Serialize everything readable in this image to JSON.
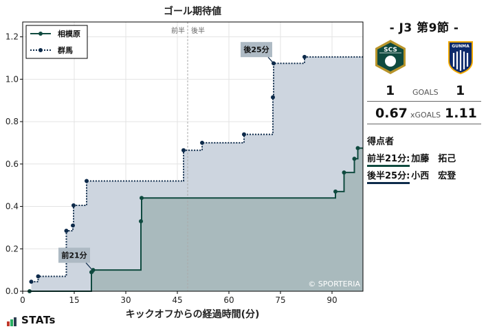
{
  "chart_data": {
    "type": "line",
    "step": true,
    "title": "ゴール期待値",
    "xlabel": "キックオフからの経過時間(分)",
    "ylabel": "",
    "xlim": [
      0,
      99
    ],
    "ylim": [
      0,
      1.27
    ],
    "xticks": [
      0,
      15,
      30,
      45,
      60,
      75,
      90
    ],
    "yticks": [
      0.0,
      0.2,
      0.4,
      0.6,
      0.8,
      1.0,
      1.2
    ],
    "halftime_marker": {
      "x": 48,
      "labels": [
        "前半",
        "後半"
      ]
    },
    "legend_position": "top-left",
    "grid": true,
    "series": [
      {
        "name": "相模原",
        "color": "#0f4a3f",
        "fill": "#a7b8bb",
        "line_style": "solid",
        "points": [
          [
            2,
            0
          ],
          [
            20,
            0.09
          ],
          [
            20.5,
            0.1
          ],
          [
            34.4,
            0.33
          ],
          [
            34.6,
            0.44
          ],
          [
            91,
            0.47
          ],
          [
            93.5,
            0.56
          ],
          [
            96.5,
            0.625
          ],
          [
            97.5,
            0.675
          ],
          [
            99,
            0.675
          ]
        ]
      },
      {
        "name": "群馬",
        "color": "#0d2a4a",
        "fill": "#cdd5df",
        "line_style": "dotted",
        "points": [
          [
            2.5,
            0.045
          ],
          [
            4.5,
            0.07
          ],
          [
            12.7,
            0.285
          ],
          [
            14.6,
            0.31
          ],
          [
            14.8,
            0.405
          ],
          [
            18.6,
            0.52
          ],
          [
            46.8,
            0.665
          ],
          [
            52.2,
            0.7
          ],
          [
            64.4,
            0.74
          ],
          [
            72.8,
            0.915
          ],
          [
            73,
            1.075
          ],
          [
            82,
            1.105
          ],
          [
            99,
            1.105
          ]
        ]
      }
    ],
    "annotations": [
      {
        "text": "前21分",
        "x": 20,
        "y": 0.105
      },
      {
        "text": "後25分",
        "x": 73,
        "y": 1.075
      }
    ]
  },
  "watermark": "© SPORTERIA",
  "match": {
    "title": "- J3 第9節 -",
    "home": {
      "name": "相模原",
      "abbr": "SCS",
      "goals": "1",
      "xg": "0.67",
      "color": "#0f4a3f",
      "accent": "#b8942a"
    },
    "away": {
      "name": "群馬",
      "abbr": "GUNMA",
      "goals": "1",
      "xg": "1.11",
      "color": "#0d2a6a",
      "accent": "#f0a800"
    },
    "goals_label": "GOALS",
    "xg_label": "xGOALS"
  },
  "scorers": {
    "title": "得点者",
    "list": [
      {
        "time": "前半21分:",
        "name": "加藤　拓己",
        "color": "#0f4a3f"
      },
      {
        "time": "後半25分:",
        "name": "小西　宏登",
        "color": "#0d2a4a"
      }
    ]
  },
  "brand": {
    "name": "STATs",
    "bar_colors": [
      "#c0392b",
      "#27ae60",
      "#2c3e50"
    ]
  }
}
